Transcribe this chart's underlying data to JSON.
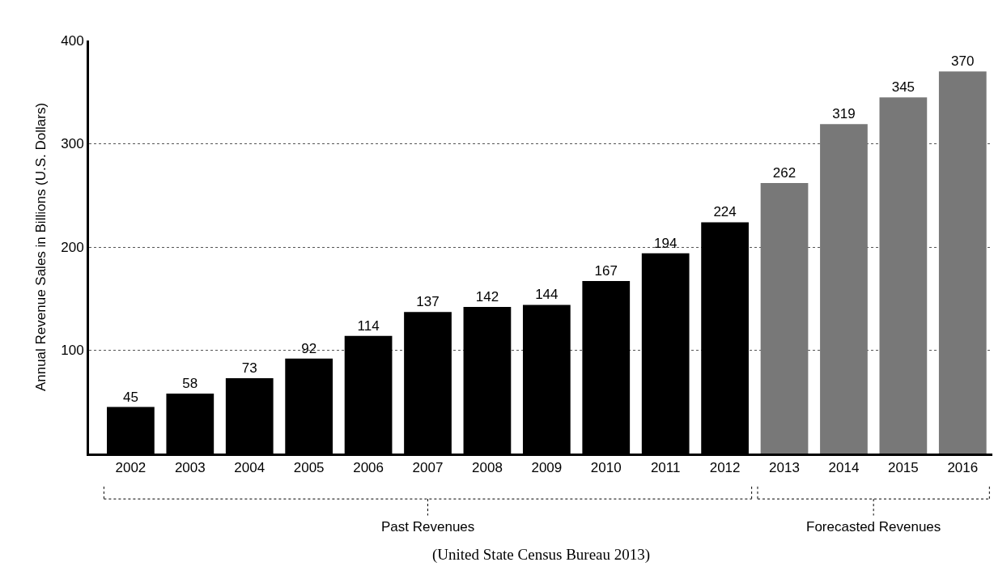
{
  "chart_data": {
    "type": "bar",
    "ylabel": "Annual Revenue Sales in Billions (U.S. Dollars)",
    "categories": [
      "2002",
      "2003",
      "2004",
      "2005",
      "2006",
      "2007",
      "2008",
      "2009",
      "2010",
      "2011",
      "2012",
      "2013",
      "2014",
      "2015",
      "2016"
    ],
    "values": [
      45,
      58,
      73,
      92,
      114,
      137,
      142,
      144,
      167,
      194,
      224,
      262,
      319,
      345,
      370
    ],
    "colors": [
      "#000000",
      "#000000",
      "#000000",
      "#000000",
      "#000000",
      "#000000",
      "#000000",
      "#000000",
      "#000000",
      "#000000",
      "#000000",
      "#787878",
      "#787878",
      "#787878",
      "#787878"
    ],
    "ylim": [
      0,
      400
    ],
    "yticks": [
      100,
      200,
      300,
      400
    ],
    "grid": "y",
    "data_labels": true,
    "legend": false,
    "annotations": [
      "Past Revenues",
      "Forecasted Revenues",
      "(United State Census Bureau 2013)"
    ]
  }
}
